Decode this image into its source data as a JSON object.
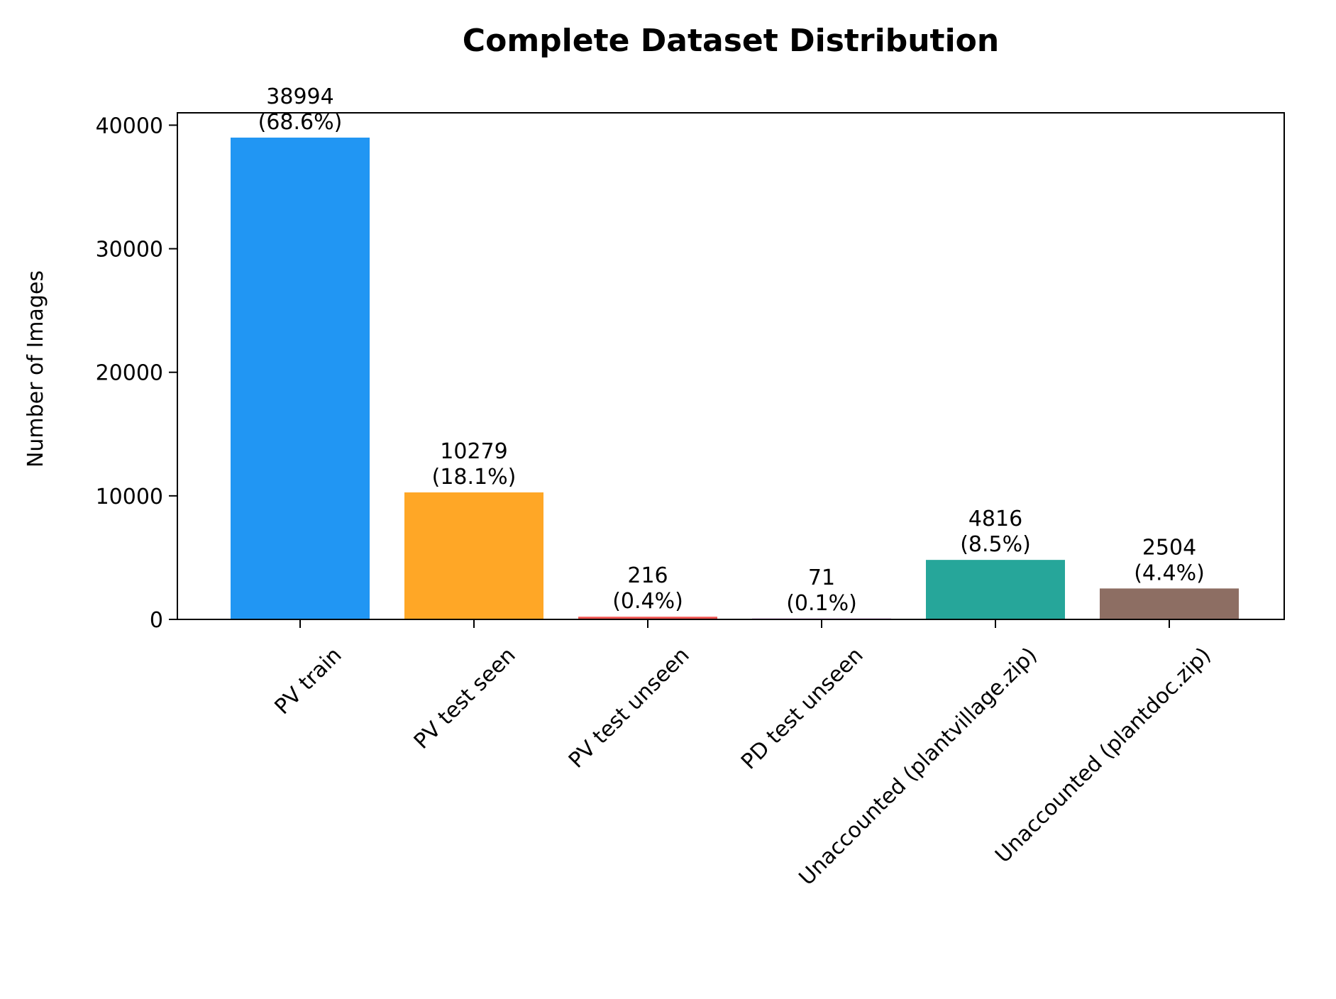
{
  "chart_data": {
    "type": "bar",
    "title": "Complete Dataset Distribution",
    "xlabel": "",
    "ylabel": "Number of Images",
    "categories": [
      "PV train",
      "PV test seen",
      "PV test unseen",
      "PD test unseen",
      "Unaccounted (plantvillage.zip)",
      "Unaccounted (plantdoc.zip)"
    ],
    "values": [
      38994,
      10279,
      216,
      71,
      4816,
      2504
    ],
    "value_labels": [
      "38994",
      "10279",
      "216",
      "71",
      "4816",
      "2504"
    ],
    "percent_labels": [
      "(68.6%)",
      "(18.1%)",
      "(0.4%)",
      "(0.1%)",
      "(8.5%)",
      "(4.4%)"
    ],
    "colors": [
      "#2196F3",
      "#FFA726",
      "#EF5350",
      "#AB47BC",
      "#26A69A",
      "#8D6E63"
    ],
    "ylim": [
      0,
      41000
    ],
    "yticks": [
      0,
      10000,
      20000,
      30000,
      40000
    ],
    "ytick_labels": [
      "0",
      "10000",
      "20000",
      "30000",
      "40000"
    ],
    "grid": false,
    "legend": "none"
  }
}
